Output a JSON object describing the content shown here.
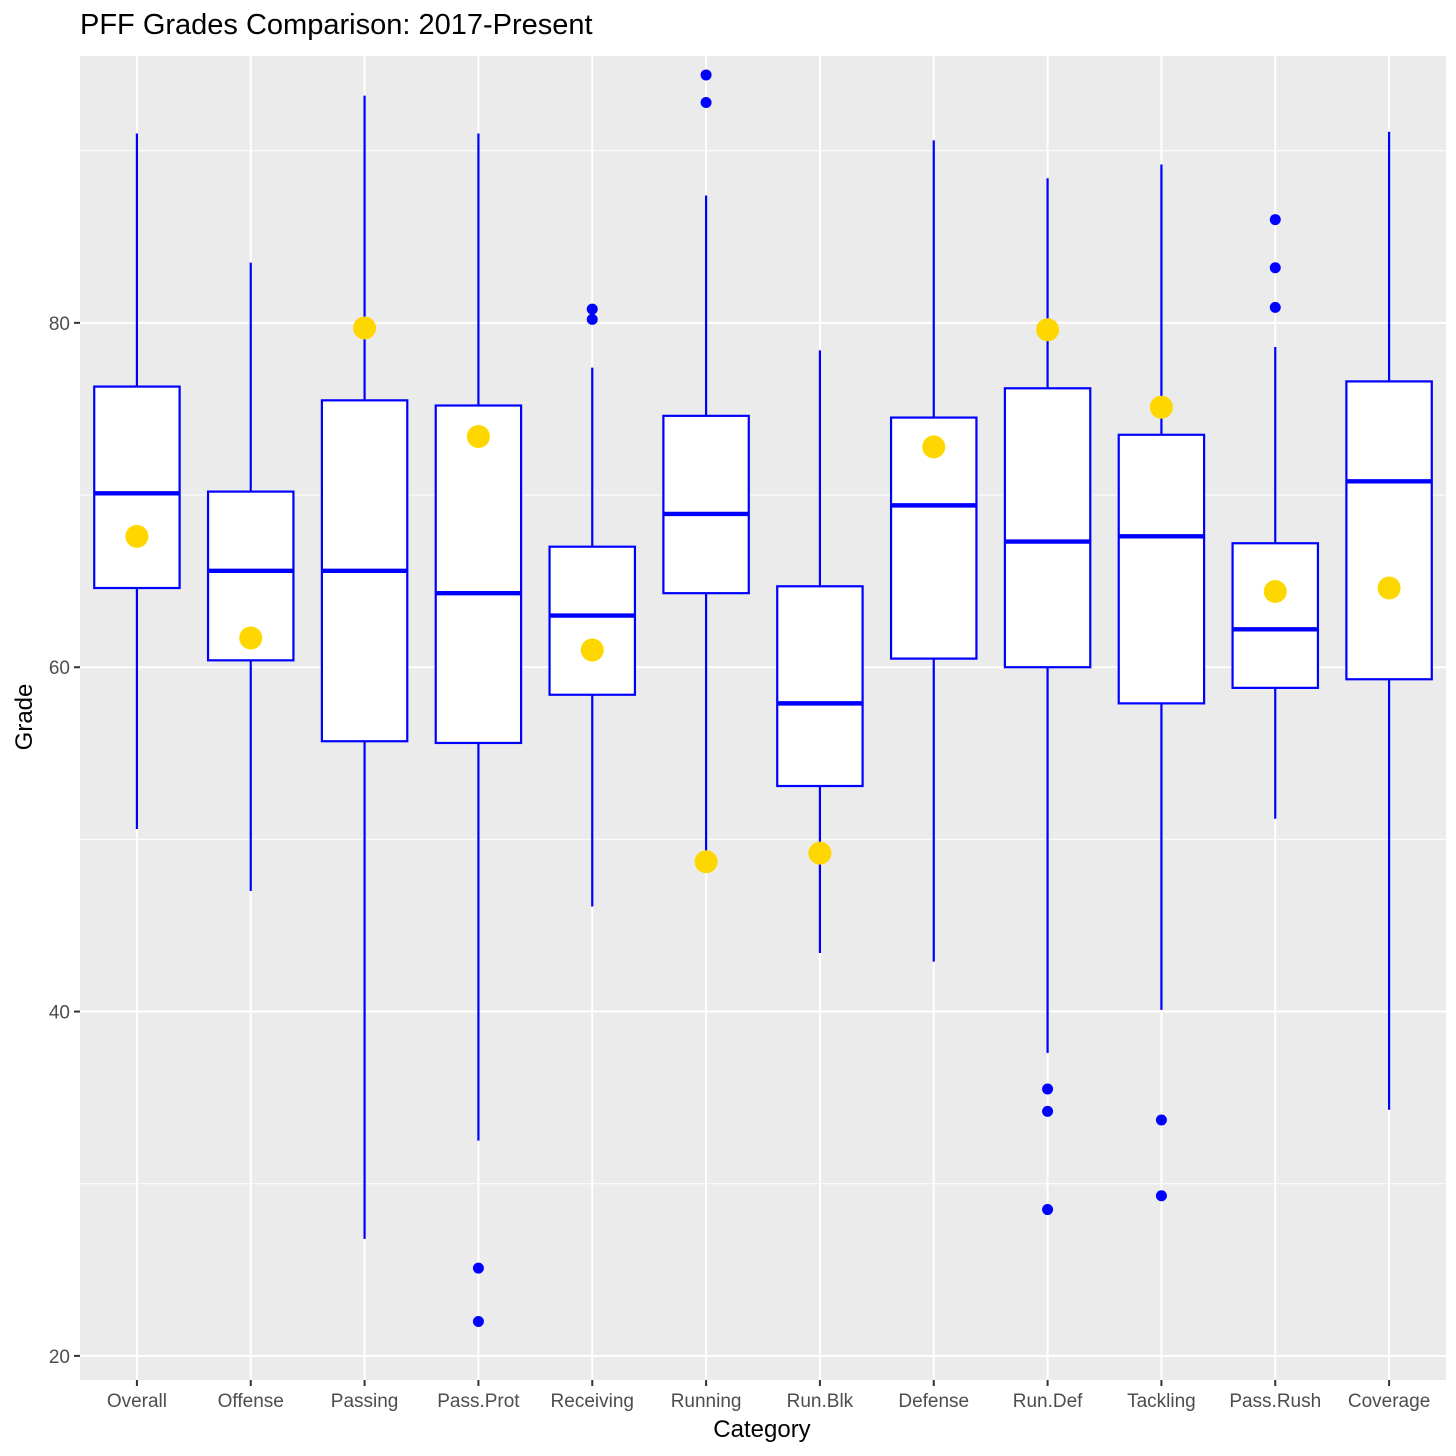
{
  "chart_data": {
    "type": "boxplot",
    "title": "PFF Grades Comparison: 2017-Present",
    "xlabel": "Category",
    "ylabel": "Grade",
    "ylim": [
      18.6,
      95.5
    ],
    "yticks": [
      20,
      40,
      60,
      80
    ],
    "grid": true,
    "colors": {
      "panel": "#ebebeb",
      "grid": "#ffffff",
      "box_stroke": "#0000ff",
      "box_fill": "#ffffff",
      "outlier": "#0000ff",
      "highlight": "#ffd700",
      "tick_label": "#4d4d4d"
    },
    "categories": [
      "Overall",
      "Offense",
      "Passing",
      "Pass.Prot",
      "Receiving",
      "Running",
      "Run.Blk",
      "Defense",
      "Run.Def",
      "Tackling",
      "Pass.Rush",
      "Coverage"
    ],
    "boxes": [
      {
        "category": "Overall",
        "lower_whisker": 50.6,
        "q1": 64.6,
        "median": 70.1,
        "q3": 76.3,
        "upper_whisker": 91.0,
        "outliers": [],
        "highlight": 67.6
      },
      {
        "category": "Offense",
        "lower_whisker": 47.0,
        "q1": 60.4,
        "median": 65.6,
        "q3": 70.2,
        "upper_whisker": 83.5,
        "outliers": [],
        "highlight": 61.7
      },
      {
        "category": "Passing",
        "lower_whisker": 26.8,
        "q1": 55.7,
        "median": 65.6,
        "q3": 75.5,
        "upper_whisker": 93.2,
        "outliers": [],
        "highlight": 79.7
      },
      {
        "category": "Pass.Prot",
        "lower_whisker": 32.5,
        "q1": 55.6,
        "median": 64.3,
        "q3": 75.2,
        "upper_whisker": 91.0,
        "outliers": [
          25.1,
          22.0
        ],
        "highlight": 73.4
      },
      {
        "category": "Receiving",
        "lower_whisker": 46.1,
        "q1": 58.4,
        "median": 63.0,
        "q3": 67.0,
        "upper_whisker": 77.4,
        "outliers": [
          80.8,
          80.2
        ],
        "highlight": 61.0
      },
      {
        "category": "Running",
        "lower_whisker": 48.7,
        "q1": 64.3,
        "median": 68.9,
        "q3": 74.6,
        "upper_whisker": 87.4,
        "outliers": [
          94.4,
          92.8
        ],
        "highlight": 48.7
      },
      {
        "category": "Run.Blk",
        "lower_whisker": 43.4,
        "q1": 53.1,
        "median": 57.9,
        "q3": 64.7,
        "upper_whisker": 78.4,
        "outliers": [],
        "highlight": 49.2
      },
      {
        "category": "Defense",
        "lower_whisker": 42.9,
        "q1": 60.5,
        "median": 69.4,
        "q3": 74.5,
        "upper_whisker": 90.6,
        "outliers": [],
        "highlight": 72.8
      },
      {
        "category": "Run.Def",
        "lower_whisker": 37.6,
        "q1": 60.0,
        "median": 67.3,
        "q3": 76.2,
        "upper_whisker": 88.4,
        "outliers": [
          35.5,
          34.2,
          28.5
        ],
        "highlight": 79.6
      },
      {
        "category": "Tackling",
        "lower_whisker": 40.1,
        "q1": 57.9,
        "median": 67.6,
        "q3": 73.5,
        "upper_whisker": 89.2,
        "outliers": [
          33.7,
          29.3
        ],
        "highlight": 75.1
      },
      {
        "category": "Pass.Rush",
        "lower_whisker": 51.2,
        "q1": 58.8,
        "median": 62.2,
        "q3": 67.2,
        "upper_whisker": 78.6,
        "outliers": [
          86.0,
          83.2,
          80.9
        ],
        "highlight": 64.4
      },
      {
        "category": "Coverage",
        "lower_whisker": 34.3,
        "q1": 59.3,
        "median": 70.8,
        "q3": 76.6,
        "upper_whisker": 91.1,
        "outliers": [],
        "highlight": 64.6
      }
    ]
  }
}
